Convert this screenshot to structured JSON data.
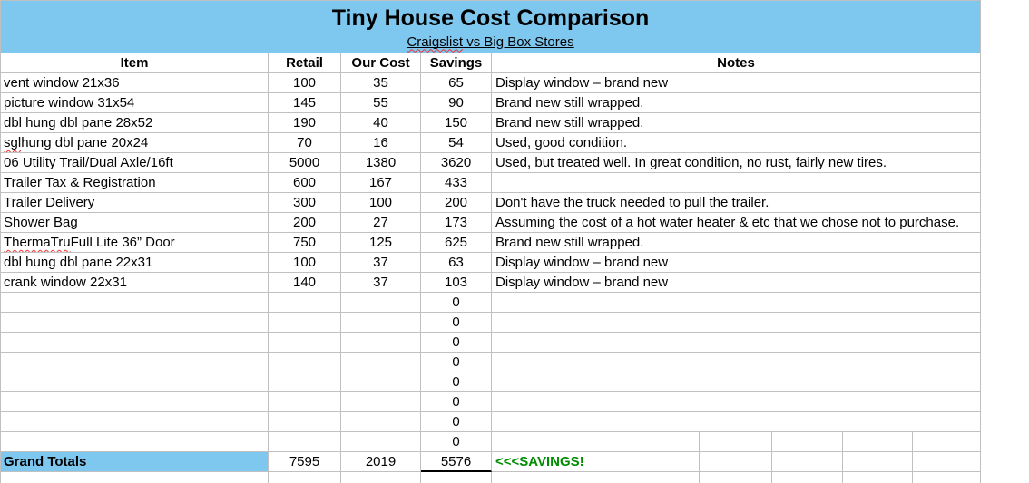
{
  "title": "Tiny House Cost Comparison",
  "subtitle": "Craigslist vs Big Box Stores",
  "columns": [
    "Item",
    "Retail",
    "Our Cost",
    "Savings",
    "Notes"
  ],
  "rows": [
    {
      "type": "data",
      "item": "vent window 21x36",
      "retail": "100",
      "our_cost": "35",
      "savings": "65",
      "notes": "Display window – brand new"
    },
    {
      "type": "data",
      "item": "picture window 31x54",
      "retail": "145",
      "our_cost": "55",
      "savings": "90",
      "notes": "Brand new still wrapped."
    },
    {
      "type": "data",
      "item": "dbl hung dbl pane 28x52",
      "retail": "190",
      "our_cost": "40",
      "savings": "150",
      "notes": "Brand new still wrapped."
    },
    {
      "type": "data",
      "item": "sgl hung dbl pane 20x24",
      "retail": "70",
      "our_cost": "16",
      "savings": "54",
      "notes": "Used, good condition."
    },
    {
      "type": "data",
      "item": "06 Utility Trail/Dual Axle/16ft",
      "retail": "5000",
      "our_cost": "1380",
      "savings": "3620",
      "notes": "Used, but treated well. In great condition, no rust, fairly new tires."
    },
    {
      "type": "data",
      "item": "Trailer Tax & Registration",
      "retail": "600",
      "our_cost": "167",
      "savings": "433",
      "notes": ""
    },
    {
      "type": "data",
      "item": "Trailer Delivery",
      "retail": "300",
      "our_cost": "100",
      "savings": "200",
      "notes": "Don't have the truck needed to pull the trailer."
    },
    {
      "type": "data",
      "item": "Shower Bag",
      "retail": "200",
      "our_cost": "27",
      "savings": "173",
      "notes": "Assuming the cost of a hot water heater & etc that we chose not to purchase."
    },
    {
      "type": "data",
      "item": "ThermaTru Full Lite 36” Door",
      "retail": "750",
      "our_cost": "125",
      "savings": "625",
      "notes": "Brand new still wrapped."
    },
    {
      "type": "data",
      "item": "dbl hung dbl pane 22x31",
      "retail": "100",
      "our_cost": "37",
      "savings": "63",
      "notes": "Display window – brand new"
    },
    {
      "type": "data",
      "item": "crank window 22x31",
      "retail": "140",
      "our_cost": "37",
      "savings": "103",
      "notes": "Display window – brand new"
    },
    {
      "type": "zero",
      "item": "",
      "retail": "",
      "our_cost": "",
      "savings": "0",
      "notes": ""
    },
    {
      "type": "zero",
      "item": "",
      "retail": "",
      "our_cost": "",
      "savings": "0",
      "notes": ""
    },
    {
      "type": "zero",
      "item": "",
      "retail": "",
      "our_cost": "",
      "savings": "0",
      "notes": ""
    },
    {
      "type": "zero",
      "item": "",
      "retail": "",
      "our_cost": "",
      "savings": "0",
      "notes": ""
    },
    {
      "type": "zero",
      "item": "",
      "retail": "",
      "our_cost": "",
      "savings": "0",
      "notes": ""
    },
    {
      "type": "zero",
      "item": "",
      "retail": "",
      "our_cost": "",
      "savings": "0",
      "notes": ""
    },
    {
      "type": "zero",
      "item": "",
      "retail": "",
      "our_cost": "",
      "savings": "0",
      "notes": ""
    },
    {
      "type": "zero",
      "item": "",
      "retail": "",
      "our_cost": "",
      "savings": "0",
      "notes": "",
      "split": true
    },
    {
      "type": "totals",
      "item": "Grand Totals",
      "retail": "7595",
      "our_cost": "2019",
      "savings": "5576",
      "notes": "<<<SAVINGS!",
      "split": true
    },
    {
      "type": "partial",
      "item": "",
      "retail": "",
      "our_cost": "",
      "savings": "",
      "notes": "",
      "split": true
    }
  ],
  "spellcheck_words": [
    "Craigslist",
    "sgl",
    "ThermaTru"
  ],
  "colors": {
    "header_blue": "#7EC8F0",
    "savings_green": "#008C00",
    "grid": "#C0C0C0"
  }
}
